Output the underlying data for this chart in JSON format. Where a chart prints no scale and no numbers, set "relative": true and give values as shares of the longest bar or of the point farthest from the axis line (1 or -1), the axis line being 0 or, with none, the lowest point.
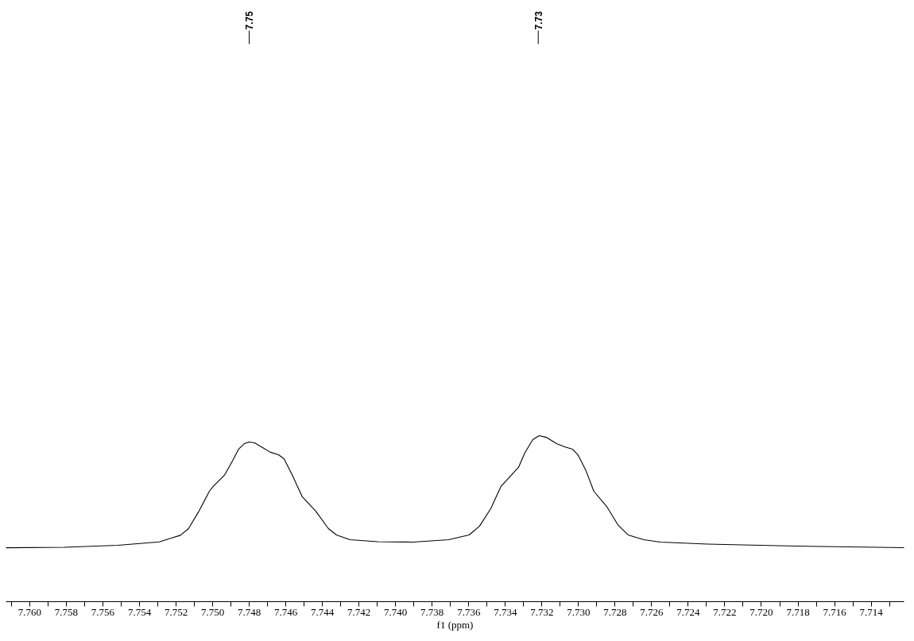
{
  "chart_data": {
    "type": "line",
    "xlabel": "f1 (ppm)",
    "relative": true,
    "grid": false,
    "xlim": [
      7.7613,
      7.7122
    ],
    "xticks": [
      {
        "value": 7.761,
        "label": null
      },
      {
        "value": 7.76,
        "label": "7.760"
      },
      {
        "value": 7.759,
        "label": null
      },
      7.758,
      {
        "value": 7.757,
        "label": null
      },
      7.756,
      {
        "value": 7.755,
        "label": null
      },
      7.754,
      {
        "value": 7.753,
        "label": null
      },
      7.752,
      {
        "value": 7.751,
        "label": null
      },
      {
        "value": 7.75,
        "label": "7.750"
      },
      {
        "value": 7.749,
        "label": null
      },
      7.748,
      {
        "value": 7.747,
        "label": null
      },
      7.746,
      {
        "value": 7.745,
        "label": null
      },
      7.744,
      {
        "value": 7.743,
        "label": null
      },
      7.742,
      {
        "value": 7.741,
        "label": null
      },
      {
        "value": 7.74,
        "label": "7.740"
      },
      {
        "value": 7.739,
        "label": null
      },
      7.738,
      {
        "value": 7.737,
        "label": null
      },
      7.736,
      {
        "value": 7.735,
        "label": null
      },
      7.734,
      {
        "value": 7.733,
        "label": null
      },
      7.732,
      {
        "value": 7.731,
        "label": null
      },
      {
        "value": 7.73,
        "label": "7.730"
      },
      {
        "value": 7.729,
        "label": null
      },
      7.728,
      {
        "value": 7.727,
        "label": null
      },
      7.726,
      {
        "value": 7.725,
        "label": null
      },
      7.724,
      {
        "value": 7.723,
        "label": null
      },
      7.722,
      {
        "value": 7.721,
        "label": null
      },
      {
        "value": 7.72,
        "label": "7.720"
      },
      {
        "value": 7.719,
        "label": null
      },
      7.718,
      {
        "value": 7.717,
        "label": null
      },
      7.716,
      {
        "value": 7.715,
        "label": null
      },
      7.714,
      {
        "value": 7.713,
        "label": null
      }
    ],
    "x": [
      7.7613,
      7.75813,
      7.75518,
      7.75292,
      7.75227,
      7.75176,
      7.75132,
      7.75075,
      7.75018,
      7.74997,
      7.74936,
      7.74892,
      7.74858,
      7.74827,
      7.74801,
      7.74771,
      7.74727,
      7.74684,
      7.7464,
      7.7461,
      7.74566,
      7.7451,
      7.74436,
      7.74367,
      7.74323,
      7.74249,
      7.74097,
      7.73906,
      7.73711,
      7.73598,
      7.73541,
      7.7348,
      7.73424,
      7.73368,
      7.73328,
      7.73294,
      7.7325,
      7.73215,
      7.73176,
      7.7312,
      7.73076,
      7.73033,
      7.73003,
      7.72959,
      7.72916,
      7.72846,
      7.72785,
      7.72729,
      7.72642,
      7.72551,
      7.72295,
      7.71812,
      7.7122
    ],
    "series": [
      {
        "color": "#000000",
        "values": [
          0.325,
          0.328,
          0.34,
          0.36,
          0.383,
          0.4,
          0.44,
          0.545,
          0.665,
          0.694,
          0.761,
          0.847,
          0.919,
          0.952,
          0.962,
          0.957,
          0.928,
          0.9,
          0.885,
          0.861,
          0.766,
          0.632,
          0.545,
          0.44,
          0.402,
          0.373,
          0.361,
          0.359,
          0.373,
          0.402,
          0.455,
          0.56,
          0.694,
          0.761,
          0.809,
          0.895,
          0.976,
          1.0,
          0.99,
          0.952,
          0.933,
          0.919,
          0.885,
          0.789,
          0.665,
          0.574,
          0.464,
          0.402,
          0.373,
          0.359,
          0.347,
          0.335,
          0.325
        ]
      }
    ],
    "annotations": [
      {
        "text": "7.75",
        "x": 7.748
      },
      {
        "text": "7.73",
        "x": 7.7322
      }
    ]
  }
}
